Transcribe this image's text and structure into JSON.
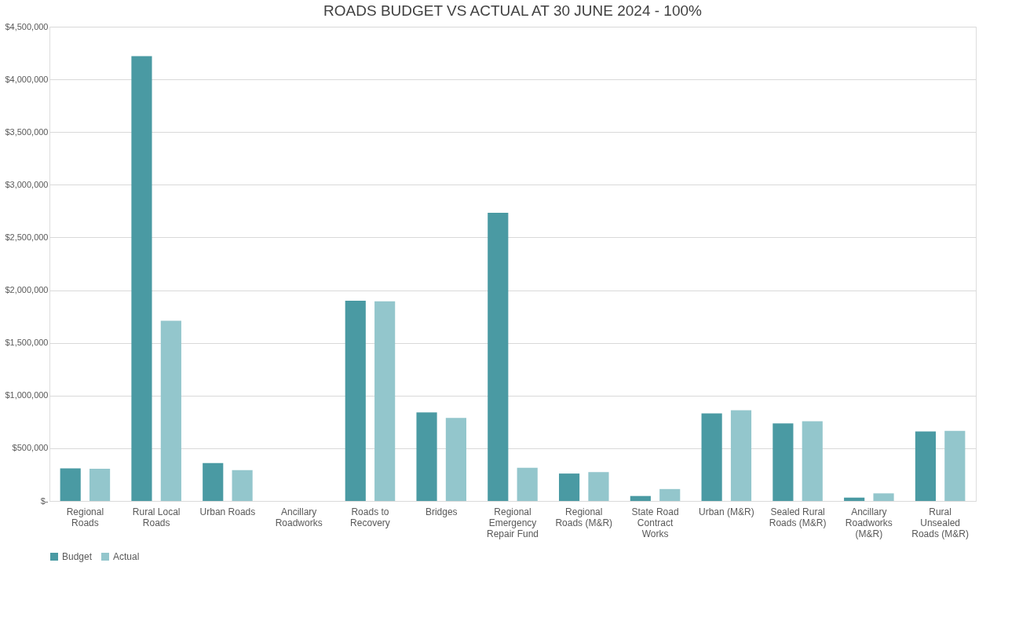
{
  "chart_data": {
    "type": "bar",
    "title": "ROADS BUDGET VS ACTUAL AT 30  JUNE 2024 - 100%",
    "categories": [
      "Regional Roads",
      "Rural Local Roads",
      "Urban Roads",
      "Ancillary Roadworks",
      "Roads to Recovery",
      "Bridges",
      "Regional Emergency Repair Fund",
      "Regional Roads (M&R)",
      "State Road Contract Works",
      "Urban (M&R)",
      "Sealed Rural Roads (M&R)",
      "Ancillary Roadworks (M&R)",
      "Rural Unsealed Roads (M&R)"
    ],
    "series": [
      {
        "name": "Budget",
        "color": "#4a9aa3",
        "values": [
          310000,
          4220000,
          360000,
          0,
          1900000,
          840000,
          2735000,
          260000,
          47000,
          830000,
          735000,
          31000,
          660000
        ]
      },
      {
        "name": "Actual",
        "color": "#93c6cc",
        "values": [
          305000,
          1710000,
          292000,
          0,
          1895000,
          787000,
          314000,
          273000,
          113000,
          860000,
          756000,
          72000,
          665000
        ]
      }
    ],
    "ylim": [
      0,
      4500000
    ],
    "yticks": [
      {
        "value": 0,
        "label": "$-"
      },
      {
        "value": 500000,
        "label": "$500,000"
      },
      {
        "value": 1000000,
        "label": "$1,000,000"
      },
      {
        "value": 1500000,
        "label": "$1,500,000"
      },
      {
        "value": 2000000,
        "label": "$2,000,000"
      },
      {
        "value": 2500000,
        "label": "$2,500,000"
      },
      {
        "value": 3000000,
        "label": "$3,000,000"
      },
      {
        "value": 3500000,
        "label": "$3,500,000"
      },
      {
        "value": 4000000,
        "label": "$4,000,000"
      },
      {
        "value": 4500000,
        "label": "$4,500,000"
      }
    ],
    "grid": "y",
    "legend": "bottom"
  }
}
